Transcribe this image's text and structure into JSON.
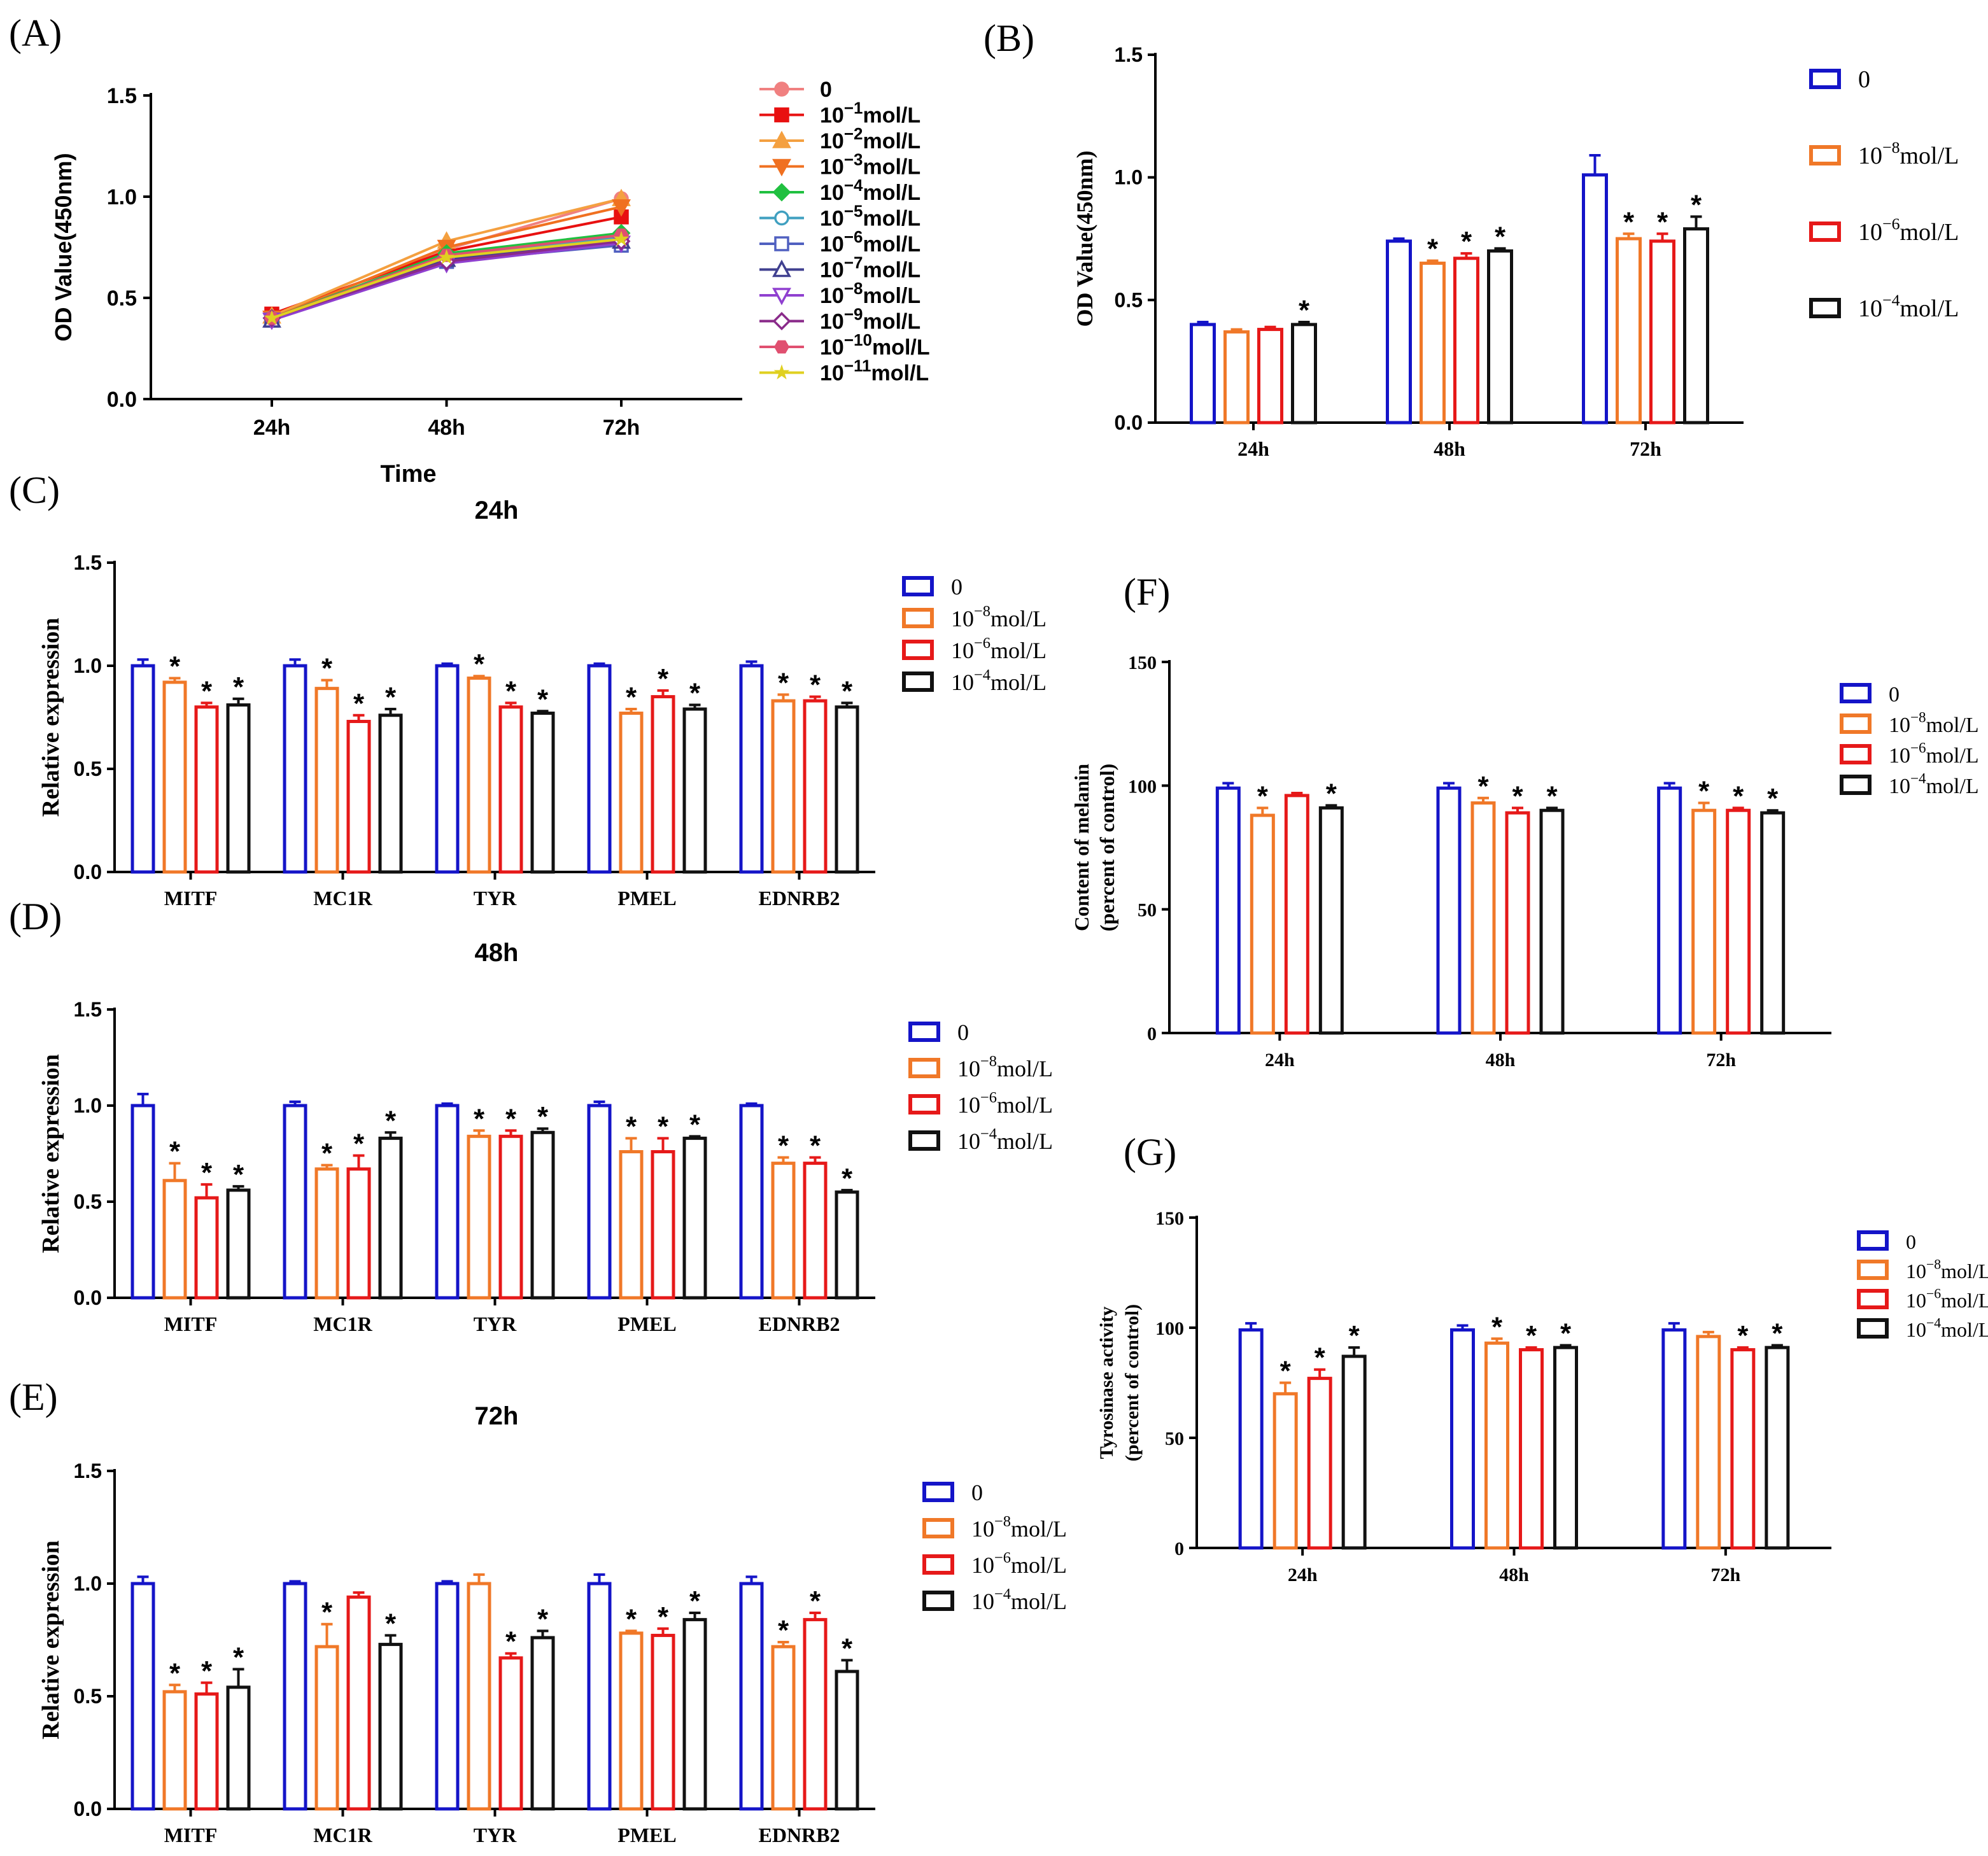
{
  "figure": {
    "group_names": [
      "0",
      "10⁻⁸mol/L",
      "10⁻⁶mol/L",
      "10⁻⁴mol/L"
    ],
    "group_colors": [
      "#1414c8",
      "#f07828",
      "#e61919",
      "#111111"
    ]
  },
  "chart_data": [
    {
      "id": "A",
      "panel_label": "(A)",
      "type": "line",
      "title": "",
      "xlabel": "Time",
      "ylabel": "OD Value(450nm)",
      "ylim": [
        0,
        1.5
      ],
      "yticks": [
        "0.0",
        "0.5",
        "1.0",
        "1.5"
      ],
      "categories": [
        "24h",
        "48h",
        "72h"
      ],
      "legend_position": "right",
      "series": [
        {
          "name": "0",
          "base": "0",
          "exp": "",
          "unit": "",
          "color": "#f08080",
          "marker": "circle-filled",
          "values": [
            0.41,
            0.74,
            0.99
          ]
        },
        {
          "name": "10⁻¹mol/L",
          "base": "10",
          "exp": "−1",
          "unit": "mol/L",
          "color": "#e81010",
          "marker": "square-filled",
          "values": [
            0.42,
            0.73,
            0.9
          ]
        },
        {
          "name": "10⁻²mol/L",
          "base": "10",
          "exp": "−2",
          "unit": "mol/L",
          "color": "#f4a040",
          "marker": "triangle-up-filled",
          "values": [
            0.41,
            0.78,
            0.99
          ]
        },
        {
          "name": "10⁻³mol/L",
          "base": "10",
          "exp": "−3",
          "unit": "mol/L",
          "color": "#f07020",
          "marker": "triangle-down-filled",
          "values": [
            0.4,
            0.75,
            0.95
          ]
        },
        {
          "name": "10⁻⁴mol/L",
          "base": "10",
          "exp": "−4",
          "unit": "mol/L",
          "color": "#20c040",
          "marker": "diamond-filled",
          "values": [
            0.4,
            0.72,
            0.82
          ]
        },
        {
          "name": "10⁻⁵mol/L",
          "base": "10",
          "exp": "−5",
          "unit": "mol/L",
          "color": "#40a0c0",
          "marker": "circle-open",
          "values": [
            0.4,
            0.7,
            0.8
          ]
        },
        {
          "name": "10⁻⁶mol/L",
          "base": "10",
          "exp": "−6",
          "unit": "mol/L",
          "color": "#5060c0",
          "marker": "square-open",
          "values": [
            0.39,
            0.68,
            0.76
          ]
        },
        {
          "name": "10⁻⁷mol/L",
          "base": "10",
          "exp": "−7",
          "unit": "mol/L",
          "color": "#404090",
          "marker": "triangle-up-open",
          "values": [
            0.39,
            0.69,
            0.78
          ]
        },
        {
          "name": "10⁻⁸mol/L",
          "base": "10",
          "exp": "−8",
          "unit": "mol/L",
          "color": "#9040d0",
          "marker": "triangle-down-open",
          "values": [
            0.39,
            0.67,
            0.77
          ]
        },
        {
          "name": "10⁻⁹mol/L",
          "base": "10",
          "exp": "−9",
          "unit": "mol/L",
          "color": "#8a2a8a",
          "marker": "diamond-open",
          "values": [
            0.4,
            0.68,
            0.78
          ]
        },
        {
          "name": "10⁻¹⁰mol/L",
          "base": "10",
          "exp": "−10",
          "unit": "mol/L",
          "color": "#e05070",
          "marker": "hexagon-filled",
          "values": [
            0.4,
            0.71,
            0.81
          ]
        },
        {
          "name": "10⁻¹¹mol/L",
          "base": "10",
          "exp": "−11",
          "unit": "mol/L",
          "color": "#e0d020",
          "marker": "star",
          "values": [
            0.4,
            0.7,
            0.79
          ]
        }
      ]
    },
    {
      "id": "B",
      "panel_label": "(B)",
      "type": "bar",
      "title": "",
      "xlabel": "",
      "ylabel": "OD Value(450nm)",
      "ylim": [
        0,
        1.5
      ],
      "yticks": [
        "0.0",
        "0.5",
        "1.0",
        "1.5"
      ],
      "categories": [
        "24h",
        "48h",
        "72h"
      ],
      "legend_position": "right",
      "series": [
        {
          "name": "0",
          "values": [
            0.4,
            0.74,
            1.01
          ],
          "errors": [
            0.01,
            0.01,
            0.08
          ],
          "significant": [
            false,
            false,
            false
          ]
        },
        {
          "name": "10⁻⁸mol/L",
          "values": [
            0.37,
            0.65,
            0.75
          ],
          "errors": [
            0.01,
            0.01,
            0.02
          ],
          "significant": [
            false,
            true,
            true
          ]
        },
        {
          "name": "10⁻⁶mol/L",
          "values": [
            0.38,
            0.67,
            0.74
          ],
          "errors": [
            0.01,
            0.02,
            0.03
          ],
          "significant": [
            false,
            true,
            true
          ]
        },
        {
          "name": "10⁻⁴mol/L",
          "values": [
            0.4,
            0.7,
            0.79
          ],
          "errors": [
            0.01,
            0.01,
            0.05
          ],
          "significant": [
            true,
            true,
            true
          ]
        }
      ]
    },
    {
      "id": "C",
      "panel_label": "(C)",
      "type": "bar",
      "title": "24h",
      "xlabel": "",
      "ylabel": "Relative expression",
      "ylim": [
        0,
        1.5
      ],
      "yticks": [
        "0.0",
        "0.5",
        "1.0",
        "1.5"
      ],
      "categories": [
        "MITF",
        "MC1R",
        "TYR",
        "PMEL",
        "EDNRB2"
      ],
      "legend_position": "right",
      "series": [
        {
          "name": "0",
          "values": [
            1.0,
            1.0,
            1.0,
            1.0,
            1.0
          ],
          "errors": [
            0.03,
            0.03,
            0.01,
            0.01,
            0.02
          ],
          "significant": [
            false,
            false,
            false,
            false,
            false
          ]
        },
        {
          "name": "10⁻⁸mol/L",
          "values": [
            0.92,
            0.89,
            0.94,
            0.77,
            0.83
          ],
          "errors": [
            0.02,
            0.04,
            0.01,
            0.02,
            0.03
          ],
          "significant": [
            true,
            true,
            true,
            true,
            true
          ]
        },
        {
          "name": "10⁻⁶mol/L",
          "values": [
            0.8,
            0.73,
            0.8,
            0.85,
            0.83
          ],
          "errors": [
            0.02,
            0.03,
            0.02,
            0.03,
            0.02
          ],
          "significant": [
            true,
            true,
            true,
            true,
            true
          ]
        },
        {
          "name": "10⁻⁴mol/L",
          "values": [
            0.81,
            0.76,
            0.77,
            0.79,
            0.8
          ],
          "errors": [
            0.03,
            0.03,
            0.01,
            0.02,
            0.02
          ],
          "significant": [
            true,
            true,
            true,
            true,
            true
          ]
        }
      ]
    },
    {
      "id": "D",
      "panel_label": "(D)",
      "type": "bar",
      "title": "48h",
      "xlabel": "",
      "ylabel": "Relative expression",
      "ylim": [
        0,
        1.5
      ],
      "yticks": [
        "0.0",
        "0.5",
        "1.0",
        "1.5"
      ],
      "categories": [
        "MITF",
        "MC1R",
        "TYR",
        "PMEL",
        "EDNRB2"
      ],
      "legend_position": "right",
      "series": [
        {
          "name": "0",
          "values": [
            1.0,
            1.0,
            1.0,
            1.0,
            1.0
          ],
          "errors": [
            0.06,
            0.02,
            0.01,
            0.02,
            0.01
          ],
          "significant": [
            false,
            false,
            false,
            false,
            false
          ]
        },
        {
          "name": "10⁻⁸mol/L",
          "values": [
            0.61,
            0.67,
            0.84,
            0.76,
            0.7
          ],
          "errors": [
            0.09,
            0.02,
            0.03,
            0.07,
            0.03
          ],
          "significant": [
            true,
            true,
            true,
            true,
            true
          ]
        },
        {
          "name": "10⁻⁶mol/L",
          "values": [
            0.52,
            0.67,
            0.84,
            0.76,
            0.7
          ],
          "errors": [
            0.07,
            0.07,
            0.03,
            0.07,
            0.03
          ],
          "significant": [
            true,
            true,
            true,
            true,
            true
          ]
        },
        {
          "name": "10⁻⁴mol/L",
          "values": [
            0.56,
            0.83,
            0.86,
            0.83,
            0.55
          ],
          "errors": [
            0.02,
            0.03,
            0.02,
            0.01,
            0.01
          ],
          "significant": [
            true,
            true,
            true,
            true,
            true
          ]
        }
      ]
    },
    {
      "id": "E",
      "panel_label": "(E)",
      "type": "bar",
      "title": "72h",
      "xlabel": "",
      "ylabel": "Relative expression",
      "ylim": [
        0,
        1.5
      ],
      "yticks": [
        "0.0",
        "0.5",
        "1.0",
        "1.5"
      ],
      "categories": [
        "MITF",
        "MC1R",
        "TYR",
        "PMEL",
        "EDNRB2"
      ],
      "legend_position": "right",
      "series": [
        {
          "name": "0",
          "values": [
            1.0,
            1.0,
            1.0,
            1.0,
            1.0
          ],
          "errors": [
            0.03,
            0.01,
            0.01,
            0.04,
            0.03
          ],
          "significant": [
            false,
            false,
            false,
            false,
            false
          ]
        },
        {
          "name": "10⁻⁸mol/L",
          "values": [
            0.52,
            0.72,
            1.0,
            0.78,
            0.72
          ],
          "errors": [
            0.03,
            0.1,
            0.04,
            0.01,
            0.02
          ],
          "significant": [
            true,
            true,
            false,
            true,
            true
          ]
        },
        {
          "name": "10⁻⁶mol/L",
          "values": [
            0.51,
            0.94,
            0.67,
            0.77,
            0.84
          ],
          "errors": [
            0.05,
            0.02,
            0.02,
            0.03,
            0.03
          ],
          "significant": [
            true,
            false,
            true,
            true,
            true
          ]
        },
        {
          "name": "10⁻⁴mol/L",
          "values": [
            0.54,
            0.73,
            0.76,
            0.84,
            0.61
          ],
          "errors": [
            0.08,
            0.04,
            0.03,
            0.03,
            0.05
          ],
          "significant": [
            true,
            true,
            true,
            true,
            true
          ]
        }
      ]
    },
    {
      "id": "F",
      "panel_label": "(F)",
      "type": "bar",
      "title": "",
      "xlabel": "",
      "ylabel": "Content of melanin",
      "ylabel2": "(percent of control)",
      "ylim": [
        0,
        150
      ],
      "yticks": [
        "0",
        "50",
        "100",
        "150"
      ],
      "categories": [
        "24h",
        "48h",
        "72h"
      ],
      "legend_position": "right",
      "series": [
        {
          "name": "0",
          "values": [
            99,
            99,
            99
          ],
          "errors": [
            2,
            2,
            2
          ],
          "significant": [
            false,
            false,
            false
          ]
        },
        {
          "name": "10⁻⁸mol/L",
          "values": [
            88,
            93,
            90
          ],
          "errors": [
            3,
            2,
            3
          ],
          "significant": [
            true,
            true,
            true
          ]
        },
        {
          "name": "10⁻⁶mol/L",
          "values": [
            96,
            89,
            90
          ],
          "errors": [
            1,
            2,
            1
          ],
          "significant": [
            false,
            true,
            true
          ]
        },
        {
          "name": "10⁻⁴mol/L",
          "values": [
            91,
            90,
            89
          ],
          "errors": [
            1,
            1,
            1
          ],
          "significant": [
            true,
            true,
            true
          ]
        }
      ]
    },
    {
      "id": "G",
      "panel_label": "(G)",
      "type": "bar",
      "title": "",
      "xlabel": "",
      "ylabel": "Tyrosinase activity",
      "ylabel2": "(percent of control)",
      "ylim": [
        0,
        150
      ],
      "yticks": [
        "0",
        "50",
        "100",
        "150"
      ],
      "categories": [
        "24h",
        "48h",
        "72h"
      ],
      "legend_position": "right",
      "series": [
        {
          "name": "0",
          "values": [
            99,
            99,
            99
          ],
          "errors": [
            3,
            2,
            3
          ],
          "significant": [
            false,
            false,
            false
          ]
        },
        {
          "name": "10⁻⁸mol/L",
          "values": [
            70,
            93,
            96
          ],
          "errors": [
            5,
            2,
            2
          ],
          "significant": [
            true,
            true,
            false
          ]
        },
        {
          "name": "10⁻⁶mol/L",
          "values": [
            77,
            90,
            90
          ],
          "errors": [
            4,
            1,
            1
          ],
          "significant": [
            true,
            true,
            true
          ]
        },
        {
          "name": "10⁻⁴mol/L",
          "values": [
            87,
            91,
            91
          ],
          "errors": [
            4,
            1,
            1
          ],
          "significant": [
            true,
            true,
            true
          ]
        }
      ]
    }
  ]
}
